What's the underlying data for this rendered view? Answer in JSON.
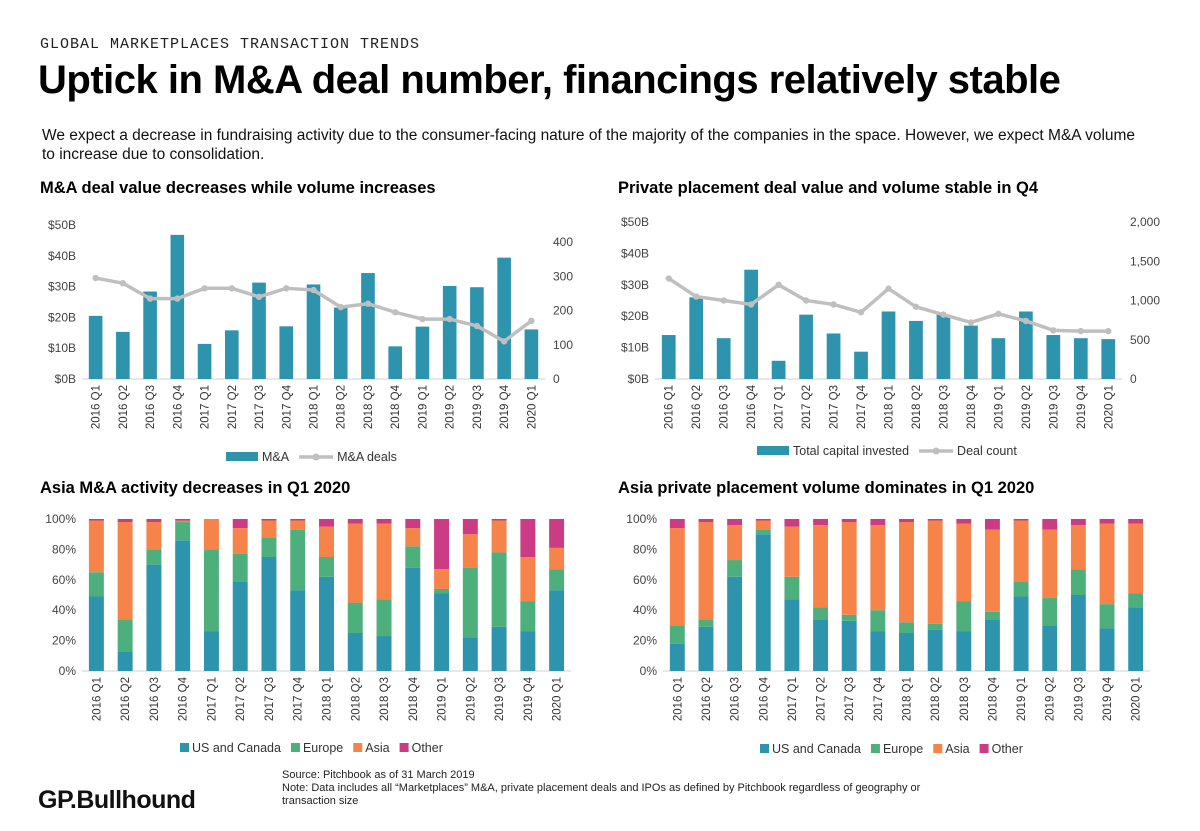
{
  "header": {
    "eyebrow": "GLOBAL MARKETPLACES TRANSACTION TRENDS",
    "title": "Uptick in M&A deal number, financings relatively stable",
    "intro": "We expect a decrease in fundraising activity due to the consumer-facing nature of the majority of the companies in the space. However, we expect M&A volume to increase due to consolidation."
  },
  "footer": {
    "source": "Source: Pitchbook as of 31 March 2019",
    "note": "Note: Data includes all “Marketplaces” M&A, private placement deals and IPOs as defined by Pitchbook regardless of geography or transaction size",
    "logo": "GP.Bullhound"
  },
  "colors": {
    "teal": "#2e93ad",
    "grey": "#bfbfbf",
    "green": "#4daf7c",
    "orange": "#f5834a",
    "magenta": "#cc3c84"
  },
  "chart_data": [
    {
      "id": "ma",
      "type": "bar",
      "title": "M&A deal value decreases while volume increases",
      "categories": [
        "2016 Q1",
        "2016 Q2",
        "2016 Q3",
        "2016 Q4",
        "2017 Q1",
        "2017 Q2",
        "2017 Q3",
        "2017 Q4",
        "2018 Q1",
        "2018 Q2",
        "2018 Q3",
        "2018 Q4",
        "2019 Q1",
        "2019 Q2",
        "2019 Q3",
        "2019 Q4",
        "2020 Q1"
      ],
      "series": [
        {
          "name": "M&A",
          "type": "bar",
          "axis": "left",
          "values": [
            20.5,
            15.3,
            28.4,
            46.8,
            11.4,
            15.8,
            31.3,
            17.1,
            30.7,
            23.2,
            34.4,
            10.6,
            17.0,
            30.2,
            29.8,
            39.4,
            16.1
          ]
        },
        {
          "name": "M&A deals",
          "type": "line",
          "axis": "right",
          "values": [
            295,
            280,
            235,
            235,
            265,
            265,
            240,
            265,
            260,
            210,
            220,
            195,
            175,
            175,
            155,
            110,
            170
          ]
        }
      ],
      "y_left": {
        "min": 0,
        "max": 50,
        "ticks": [
          "$0B",
          "$10B",
          "$20B",
          "$30B",
          "$40B",
          "$50B"
        ]
      },
      "y_right": {
        "min": 0,
        "max": 450,
        "ticks": [
          "0",
          "100",
          "200",
          "300",
          "400"
        ]
      },
      "legend": [
        "M&A",
        "M&A deals"
      ]
    },
    {
      "id": "pp",
      "type": "bar",
      "title": "Private placement deal value and volume stable in Q4",
      "categories": [
        "2016 Q1",
        "2016 Q2",
        "2016 Q3",
        "2016 Q4",
        "2017 Q1",
        "2017 Q2",
        "2017 Q3",
        "2017 Q4",
        "2018 Q1",
        "2018 Q2",
        "2018 Q3",
        "2018 Q4",
        "2019 Q1",
        "2019 Q2",
        "2019 Q3",
        "2019 Q4",
        "2020 Q1"
      ],
      "series": [
        {
          "name": "Total capital invested",
          "type": "bar",
          "axis": "left",
          "values": [
            14.0,
            26.0,
            13.0,
            34.8,
            5.8,
            20.5,
            14.5,
            8.7,
            21.5,
            18.5,
            20.5,
            17.0,
            13.0,
            21.5,
            14.0,
            13.0,
            12.7
          ]
        },
        {
          "name": "Deal count",
          "type": "line",
          "axis": "right",
          "values": [
            1280,
            1050,
            1000,
            950,
            1200,
            1000,
            950,
            850,
            1150,
            920,
            820,
            720,
            830,
            740,
            620,
            610,
            610
          ]
        }
      ],
      "y_left": {
        "min": 0,
        "max": 50,
        "ticks": [
          "$0B",
          "$10B",
          "$20B",
          "$30B",
          "$40B",
          "$50B"
        ]
      },
      "y_right": {
        "min": 0,
        "max": 2000,
        "ticks": [
          "0",
          "500",
          "1,000",
          "1,500",
          "2,000"
        ]
      },
      "legend": [
        "Total capital invested",
        "Deal count"
      ]
    },
    {
      "id": "asia_ma",
      "type": "stacked_bar_100",
      "title": "Asia M&A activity decreases in Q1 2020",
      "categories": [
        "2016 Q1",
        "2016 Q2",
        "2016 Q3",
        "2016 Q4",
        "2017 Q1",
        "2017 Q2",
        "2017 Q3",
        "2017 Q4",
        "2018 Q1",
        "2018 Q2",
        "2018 Q3",
        "2018 Q4",
        "2019 Q1",
        "2019 Q2",
        "2019 Q3",
        "2019 Q4",
        "2020 Q1"
      ],
      "series": [
        {
          "name": "US and Canada",
          "values": [
            49,
            13,
            70,
            86,
            26,
            59,
            75,
            53,
            62,
            25,
            23,
            68,
            51,
            22,
            29,
            26,
            53
          ]
        },
        {
          "name": "Europe",
          "values": [
            16,
            21,
            10,
            12,
            54,
            18,
            13,
            40,
            13,
            20,
            24,
            14,
            3,
            46,
            49,
            20,
            14
          ]
        },
        {
          "name": "Asia",
          "values": [
            34,
            64,
            18,
            1,
            20,
            17,
            11,
            6,
            20,
            52,
            50,
            12,
            13,
            22,
            21,
            29,
            14
          ]
        },
        {
          "name": "Other",
          "values": [
            1,
            2,
            2,
            1,
            0,
            6,
            1,
            1,
            5,
            3,
            3,
            6,
            33,
            10,
            1,
            25,
            19
          ]
        }
      ],
      "y_ticks": [
        "0%",
        "20%",
        "40%",
        "60%",
        "80%",
        "100%"
      ],
      "legend": [
        "US and Canada",
        "Europe",
        "Asia",
        "Other"
      ]
    },
    {
      "id": "asia_pp",
      "type": "stacked_bar_100",
      "title": "Asia private placement volume dominates in Q1 2020",
      "categories": [
        "2016 Q1",
        "2016 Q2",
        "2016 Q3",
        "2016 Q4",
        "2017 Q1",
        "2017 Q2",
        "2017 Q3",
        "2017 Q4",
        "2018 Q1",
        "2018 Q2",
        "2018 Q3",
        "2018 Q4",
        "2019 Q1",
        "2019 Q2",
        "2019 Q3",
        "2019 Q4",
        "2020 Q1"
      ],
      "series": [
        {
          "name": "US and Canada",
          "values": [
            18,
            29,
            62,
            90,
            47,
            34,
            33,
            26,
            25,
            27,
            26,
            34,
            49,
            30,
            50,
            28,
            42
          ]
        },
        {
          "name": "Europe",
          "values": [
            12,
            5,
            11,
            3,
            15,
            8,
            4,
            14,
            7,
            4,
            20,
            5,
            10,
            18,
            17,
            16,
            9
          ]
        },
        {
          "name": "Asia",
          "values": [
            64,
            64,
            23,
            6,
            33,
            54,
            61,
            56,
            66,
            68,
            51,
            54,
            40,
            45,
            29,
            53,
            46
          ]
        },
        {
          "name": "Other",
          "values": [
            6,
            2,
            4,
            1,
            5,
            4,
            2,
            4,
            2,
            1,
            3,
            7,
            1,
            7,
            4,
            3,
            3
          ]
        }
      ],
      "y_ticks": [
        "0%",
        "20%",
        "40%",
        "60%",
        "80%",
        "100%"
      ],
      "legend": [
        "US and Canada",
        "Europe",
        "Asia",
        "Other"
      ]
    }
  ]
}
